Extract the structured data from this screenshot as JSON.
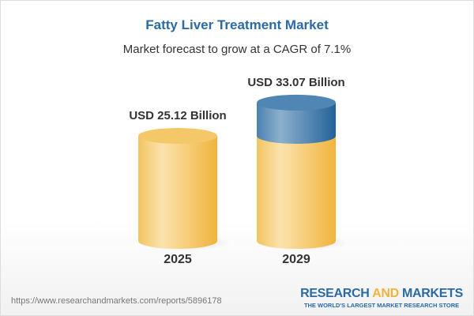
{
  "title": "Fatty Liver Treatment Market",
  "subtitle": "Market forecast to grow at a CAGR of 7.1%",
  "chart_data": {
    "type": "bar",
    "style": "3d-cylinder",
    "title": "Fatty Liver Treatment Market",
    "subtitle": "Market forecast to grow at a CAGR of 7.1%",
    "categories": [
      "2025",
      "2029"
    ],
    "values": [
      25.12,
      33.07
    ],
    "data_labels": [
      "USD 25.12 Billion",
      "USD 33.07 Billion"
    ],
    "unit": "USD Billion",
    "cagr": "7.1%",
    "colors": {
      "base": "#f3c25a",
      "growth": "#3f79a8"
    },
    "grid": false,
    "legend": "none"
  },
  "footer": {
    "url": "https://www.researchandmarkets.com/reports/5896178",
    "logo_word1": "RESEARCH",
    "logo_word2": "AND",
    "logo_word3": "MARKETS",
    "logo_tagline": "THE WORLD'S LARGEST MARKET RESEARCH STORE"
  }
}
